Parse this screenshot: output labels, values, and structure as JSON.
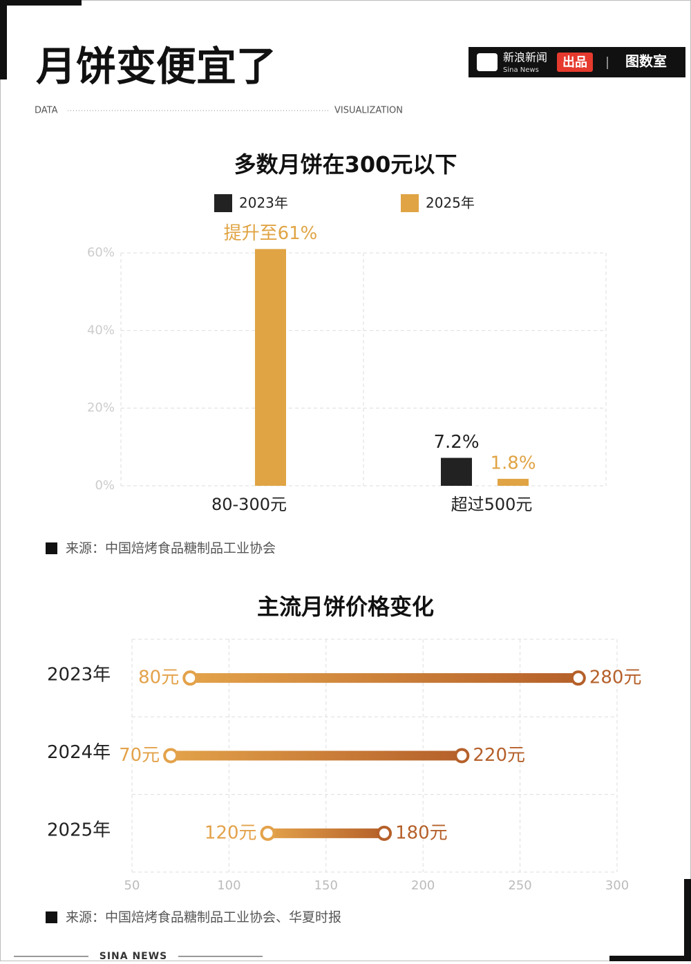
{
  "header": {
    "title": "月饼变便宜了",
    "left_label": "DATA",
    "right_label": "VISUALIZATION",
    "brand": "新浪新闻",
    "brand_en": "Sina News",
    "produced": "出品",
    "partner": "图数室"
  },
  "chart_data": [
    {
      "type": "bar",
      "title": "多数月饼在300元以下",
      "categories": [
        "80-300元",
        "超过500元"
      ],
      "series": [
        {
          "name": "2023年",
          "color": "#222222",
          "values": [
            null,
            7.2
          ],
          "value_labels": [
            null,
            "7.2%"
          ]
        },
        {
          "name": "2025年",
          "color": "#e0a445",
          "values": [
            61,
            1.8
          ],
          "value_labels": [
            "提升至61%",
            "1.8%"
          ]
        }
      ],
      "ylim": [
        0,
        60
      ],
      "yticks": [
        {
          "value": 0,
          "label": "0%"
        },
        {
          "value": 20,
          "label": "20%"
        },
        {
          "value": 40,
          "label": "40%"
        },
        {
          "value": 60,
          "label": "60%"
        }
      ],
      "grid": true,
      "source": "来源：中国焙烤食品糖制品工业协会"
    },
    {
      "type": "dumbbell",
      "title": "主流月饼价格变化",
      "categories": [
        "2023年",
        "2024年",
        "2025年"
      ],
      "series": [
        {
          "color": "#e3a24a",
          "values": [
            80,
            70,
            120
          ],
          "value_labels": [
            "80元",
            "70元",
            "120元"
          ]
        },
        {
          "color": "#b5602a",
          "values": [
            280,
            220,
            180
          ],
          "value_labels": [
            "280元",
            "220元",
            "180元"
          ]
        }
      ],
      "xlim": [
        50,
        300
      ],
      "xticks": [
        50,
        100,
        150,
        200,
        250,
        300
      ],
      "grid": true,
      "source": "来源：中国焙烤食品糖制品工业协会、华夏时报"
    }
  ],
  "footer": "SINA NEWS"
}
